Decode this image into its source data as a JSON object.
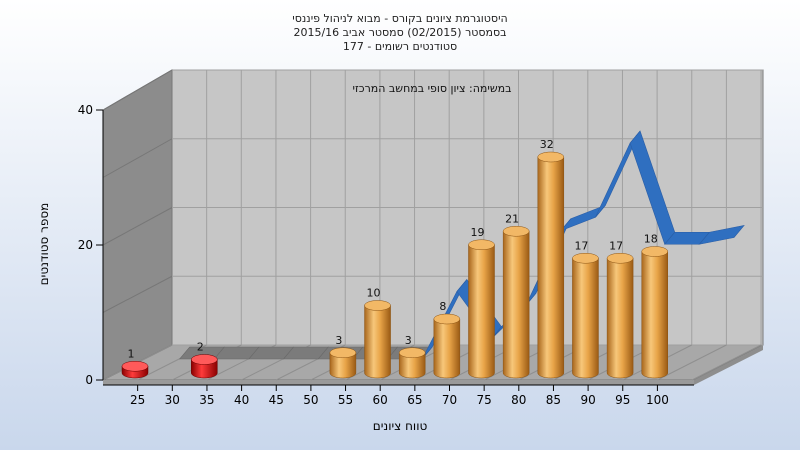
{
  "chart_data": {
    "type": "bar",
    "title_lines": [
      "היסטוגרמת ציונים בקורס - מבוא לניהול פיננסי",
      "בסמסטר  (02/2015)  סמסטר אביב 2015/16",
      "177 - סטודנטים רשומים"
    ],
    "annotation": "במשימה: ציון סופי במחשב המרכזי",
    "xlabel": "טווח ציונים",
    "ylabel": "מספר סטודנטים",
    "y_ticks": [
      "0",
      "20",
      "40"
    ],
    "ylim": [
      0,
      40
    ],
    "categories": [
      "25",
      "30",
      "35",
      "40",
      "45",
      "50",
      "55",
      "60",
      "65",
      "70",
      "75",
      "80",
      "85",
      "90",
      "95",
      "100"
    ],
    "bars": [
      {
        "bin_start": 20,
        "value": 1,
        "label": "1",
        "color": "#d81010"
      },
      {
        "bin_start": 30,
        "value": 2,
        "label": "2",
        "color": "#d81010"
      },
      {
        "bin_start": 50,
        "value": 3,
        "label": "3",
        "color": "#e8a448"
      },
      {
        "bin_start": 55,
        "value": 10,
        "label": "10",
        "color": "#e8a448"
      },
      {
        "bin_start": 60,
        "value": 3,
        "label": "3",
        "color": "#e8a448"
      },
      {
        "bin_start": 65,
        "value": 8,
        "label": "8",
        "color": "#e8a448"
      },
      {
        "bin_start": 70,
        "value": 19,
        "label": "19",
        "color": "#e8a448"
      },
      {
        "bin_start": 75,
        "value": 21,
        "label": "21",
        "color": "#e8a448"
      },
      {
        "bin_start": 80,
        "value": 32,
        "label": "32",
        "color": "#e8a448"
      },
      {
        "bin_start": 85,
        "value": 17,
        "label": "17",
        "color": "#e8a448"
      },
      {
        "bin_start": 90,
        "value": 17,
        "label": "17",
        "color": "#e8a448"
      },
      {
        "bin_start": 95,
        "value": 18,
        "label": "18",
        "color": "#e8a448"
      }
    ],
    "ribbon": {
      "color": "#2f6fc0",
      "points": [
        [
          25,
          0
        ],
        [
          30,
          0
        ],
        [
          35,
          0
        ],
        [
          40,
          0
        ],
        [
          45,
          0
        ],
        [
          50,
          0
        ],
        [
          55,
          0
        ],
        [
          60,
          0
        ],
        [
          65,
          10
        ],
        [
          70,
          3
        ],
        [
          75,
          8
        ],
        [
          80,
          19
        ],
        [
          85,
          21
        ],
        [
          90,
          32
        ],
        [
          95,
          17
        ],
        [
          100,
          17
        ],
        [
          105,
          18
        ]
      ]
    },
    "grid": true,
    "colors": {
      "background_top": "#ffffff",
      "background_bottom": "#c9d7ec",
      "plot_back": "#c6c6c6",
      "plot_floor": "#a8a8a8",
      "plot_side": "#8c8c8c"
    }
  }
}
